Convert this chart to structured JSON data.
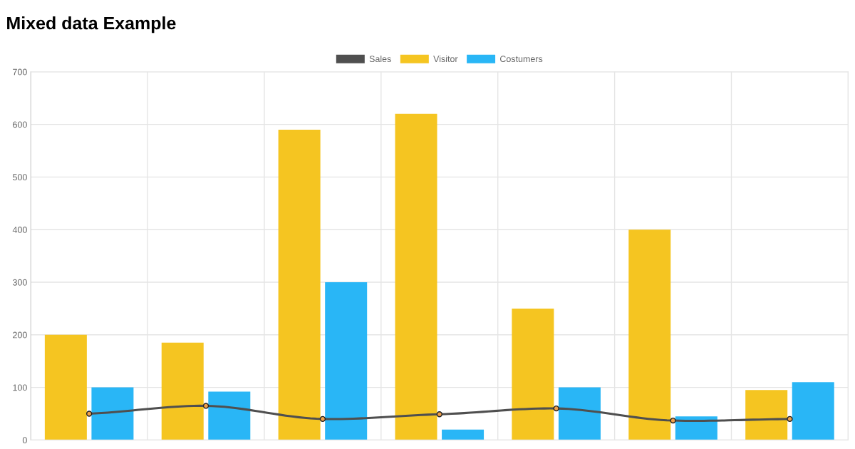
{
  "chart_data": {
    "type": "bar",
    "title": "Mixed data Example",
    "categories": [
      null,
      null,
      null,
      null,
      null,
      null,
      null
    ],
    "series": [
      {
        "name": "Sales",
        "type": "line",
        "color": "#4f4f4f",
        "values": [
          50,
          65,
          40,
          49,
          60,
          37,
          40
        ],
        "marker": "circle"
      },
      {
        "name": "Visitor",
        "color": "#f5c521",
        "values": [
          200,
          185,
          590,
          620,
          250,
          400,
          95
        ]
      },
      {
        "name": "Costumers",
        "color": "#29b6f6",
        "values": [
          100,
          92,
          300,
          20,
          100,
          45,
          110
        ]
      }
    ],
    "ylim": [
      0,
      700
    ],
    "yticks": [
      0,
      100,
      200,
      300,
      400,
      500,
      600,
      700
    ],
    "grid": true,
    "legend": "top"
  }
}
